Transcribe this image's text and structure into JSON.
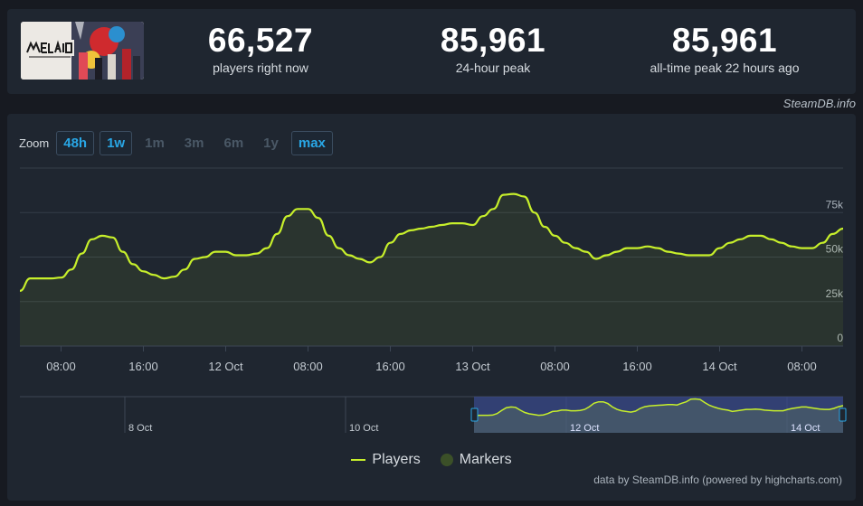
{
  "stats": {
    "current": {
      "value": "66,527",
      "label": "players right now"
    },
    "peak24": {
      "value": "85,961",
      "label": "24-hour peak"
    },
    "alltime": {
      "value": "85,961",
      "label": "all-time peak 22 hours ago"
    }
  },
  "credit_top": "SteamDB.info",
  "zoom": {
    "label": "Zoom",
    "options": [
      {
        "label": "48h",
        "active": true
      },
      {
        "label": "1w",
        "active": true
      },
      {
        "label": "1m",
        "active": false
      },
      {
        "label": "3m",
        "active": false
      },
      {
        "label": "6m",
        "active": false
      },
      {
        "label": "1y",
        "active": false
      },
      {
        "label": "max",
        "active": true
      }
    ]
  },
  "legend": {
    "players": "Players",
    "markers": "Markers"
  },
  "credit_bottom": "data by SteamDB.info (powered by highcharts.com)",
  "colors": {
    "series": "#c7ef2b",
    "accent": "#29a7e6",
    "panel": "#1f2630",
    "background": "#171a21"
  },
  "chart_data": {
    "type": "line",
    "x_tick_labels": [
      "08:00",
      "16:00",
      "12 Oct",
      "08:00",
      "16:00",
      "13 Oct",
      "08:00",
      "16:00",
      "14 Oct",
      "08:00"
    ],
    "y_ticks": [
      0,
      25000,
      50000,
      75000
    ],
    "y_tick_labels": [
      "0",
      "25k",
      "50k",
      "75k"
    ],
    "ylim": [
      0,
      100000
    ],
    "grid": true,
    "navigator_labels": [
      "8 Oct",
      "10 Oct",
      "12 Oct",
      "14 Oct"
    ],
    "series": [
      {
        "name": "Players",
        "x_hours": [
          0,
          2,
          4,
          6,
          8,
          10,
          12,
          14,
          16,
          18,
          20,
          22,
          24,
          26,
          28,
          30,
          32,
          34,
          36,
          38,
          40,
          42,
          44,
          46,
          48,
          50,
          52,
          54,
          56,
          58,
          60,
          62,
          64,
          66,
          68,
          70,
          72,
          74,
          76,
          78,
          80,
          82,
          84,
          86,
          88,
          90,
          92,
          94,
          96,
          98,
          100,
          102,
          104,
          106,
          108,
          110,
          112,
          114,
          116,
          118,
          120,
          122,
          124,
          126,
          128,
          130,
          132,
          134,
          136,
          138,
          140,
          142,
          144,
          146,
          148,
          150,
          152,
          154,
          156,
          158,
          160
        ],
        "values": [
          31000,
          38000,
          38000,
          38000,
          38500,
          43000,
          52000,
          60000,
          62000,
          61000,
          53000,
          46000,
          42000,
          40000,
          38000,
          39000,
          43000,
          49000,
          50000,
          53000,
          53000,
          51000,
          51000,
          52000,
          55000,
          63000,
          73000,
          77000,
          77000,
          72000,
          62000,
          55000,
          51000,
          49000,
          47000,
          50000,
          58000,
          63000,
          65000,
          66000,
          67000,
          68000,
          69000,
          69000,
          68000,
          73000,
          77000,
          85000,
          85500,
          84000,
          75000,
          67000,
          62000,
          58000,
          55000,
          53000,
          49000,
          51000,
          53000,
          55000,
          55000,
          56000,
          55000,
          53000,
          52000,
          51000,
          51000,
          51000,
          55000,
          58000,
          60000,
          62000,
          62000,
          60000,
          58000,
          56000,
          55000,
          55000,
          58000,
          63000,
          66000
        ]
      }
    ]
  }
}
